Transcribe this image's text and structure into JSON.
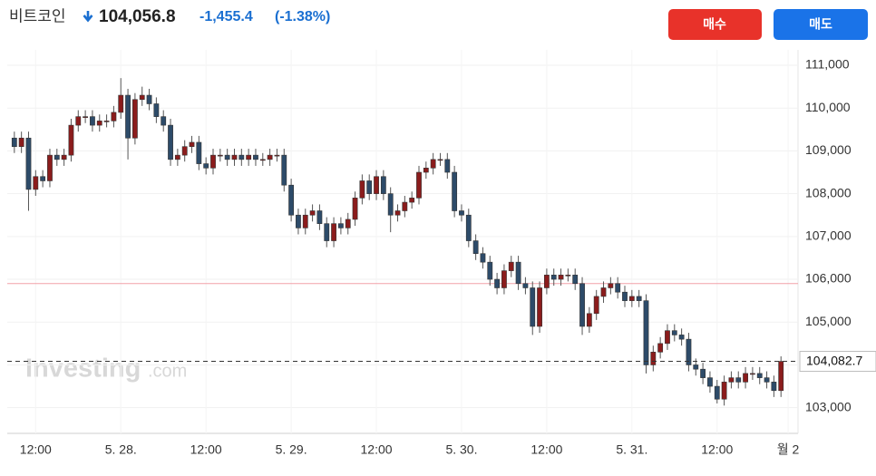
{
  "header": {
    "name": "비트코인",
    "price": "104,056.8",
    "change": "-1,455.4",
    "change_pct": "(-1.38%)"
  },
  "buttons": {
    "buy": "매수",
    "sell": "매도"
  },
  "watermark": {
    "brand": "Investing",
    "suffix": ".com"
  },
  "chart_data": {
    "type": "candlestick",
    "up_color": "#8b1c1c",
    "down_color": "#2d4b69",
    "grid": true,
    "xlim": [
      -16,
      95.4
    ],
    "ylim": [
      102400,
      111360
    ],
    "xticks": [
      {
        "value": -12,
        "label": "12:00"
      },
      {
        "value": 0,
        "label": "5. 28."
      },
      {
        "value": 12,
        "label": "12:00"
      },
      {
        "value": 24,
        "label": "5. 29."
      },
      {
        "value": 36,
        "label": "12:00"
      },
      {
        "value": 48,
        "label": "5. 30."
      },
      {
        "value": 60,
        "label": "12:00"
      },
      {
        "value": 72,
        "label": "5. 31."
      },
      {
        "value": 84,
        "label": "12:00"
      },
      {
        "value": 94,
        "label": "월 2"
      }
    ],
    "yticks": [
      {
        "value": 103000,
        "label": "103,000"
      },
      {
        "value": 104000,
        "label": "104,000"
      },
      {
        "value": 105000,
        "label": "105,000"
      },
      {
        "value": 106000,
        "label": "106,000"
      },
      {
        "value": 107000,
        "label": "107,000"
      },
      {
        "value": 108000,
        "label": "108,000"
      },
      {
        "value": 109000,
        "label": "109,000"
      },
      {
        "value": 110000,
        "label": "110,000"
      },
      {
        "value": 111000,
        "label": "111,000"
      }
    ],
    "ref_line": {
      "value": 105900,
      "color": "#f2a0a8"
    },
    "last_price": {
      "value": 104082.7,
      "label": "104,082.7"
    },
    "x": [
      -15,
      -14,
      -13,
      -12,
      -11,
      -10,
      -9,
      -8,
      -7,
      -6,
      -5,
      -4,
      -3,
      -2,
      -1,
      0,
      1,
      2,
      3,
      4,
      5,
      6,
      7,
      8,
      9,
      10,
      11,
      12,
      13,
      14,
      15,
      16,
      17,
      18,
      19,
      20,
      21,
      22,
      23,
      24,
      25,
      26,
      27,
      28,
      29,
      30,
      31,
      32,
      33,
      34,
      35,
      36,
      37,
      38,
      39,
      40,
      41,
      42,
      43,
      44,
      45,
      46,
      47,
      48,
      49,
      50,
      51,
      52,
      53,
      54,
      55,
      56,
      57,
      58,
      59,
      60,
      61,
      62,
      63,
      64,
      65,
      66,
      67,
      68,
      69,
      70,
      71,
      72,
      73,
      74,
      75,
      76,
      77,
      78,
      79,
      80,
      81,
      82,
      83,
      84,
      85,
      86,
      87,
      88,
      89,
      90,
      91,
      92,
      93
    ],
    "open": [
      109300,
      109100,
      109300,
      108100,
      108400,
      108300,
      108900,
      108800,
      108900,
      109600,
      109800,
      109800,
      109600,
      109700,
      109700,
      109900,
      110300,
      109300,
      110200,
      110300,
      110100,
      109800,
      109600,
      108800,
      108900,
      109100,
      109200,
      108700,
      108600,
      108900,
      108900,
      108800,
      108900,
      108800,
      108900,
      108800,
      108800,
      108900,
      108900,
      108200,
      107500,
      107200,
      107500,
      107600,
      107300,
      106900,
      107300,
      107200,
      107400,
      107900,
      108300,
      108000,
      108400,
      108000,
      107500,
      107600,
      107800,
      107900,
      108500,
      108600,
      108800,
      108800,
      108500,
      107600,
      107500,
      106900,
      106600,
      106400,
      106000,
      105800,
      106200,
      106400,
      105900,
      105800,
      104900,
      105800,
      106100,
      106000,
      106100,
      106100,
      105900,
      104900,
      105200,
      105600,
      105800,
      105900,
      105700,
      105500,
      105600,
      105500,
      104000,
      104300,
      104500,
      104800,
      104700,
      104600,
      104000,
      103900,
      103700,
      103500,
      103200,
      103600,
      103700,
      103600,
      103800,
      103800,
      103700,
      103600,
      103400
    ],
    "high": [
      109450,
      109450,
      109450,
      108550,
      108550,
      109050,
      109050,
      109050,
      109750,
      109950,
      109950,
      109950,
      109850,
      109850,
      110050,
      110700,
      110450,
      110350,
      110500,
      110450,
      110250,
      109950,
      109750,
      109050,
      109250,
      109350,
      109350,
      108850,
      109050,
      109050,
      109050,
      109050,
      109050,
      109050,
      109050,
      108950,
      109050,
      109050,
      109050,
      108350,
      107650,
      107650,
      107750,
      107750,
      107450,
      107450,
      107450,
      107550,
      108050,
      108450,
      108450,
      108550,
      108550,
      108150,
      107750,
      107950,
      108050,
      108650,
      108750,
      108950,
      108950,
      108950,
      108650,
      107750,
      107650,
      107050,
      106750,
      106550,
      106150,
      106350,
      106550,
      106550,
      106050,
      105950,
      105950,
      106250,
      106250,
      106250,
      106250,
      106250,
      106050,
      105350,
      105750,
      105950,
      106050,
      106050,
      105850,
      105750,
      105750,
      105650,
      104450,
      104650,
      104950,
      104950,
      104850,
      104750,
      104150,
      104050,
      103850,
      103650,
      103750,
      103850,
      103850,
      103950,
      103950,
      103950,
      103850,
      103750,
      104200
    ],
    "low": [
      108950,
      108950,
      107600,
      107950,
      108150,
      108150,
      108650,
      108650,
      108750,
      109450,
      109650,
      109450,
      109450,
      109550,
      109550,
      109750,
      108800,
      109150,
      110050,
      109950,
      109650,
      109450,
      108650,
      108650,
      108750,
      108950,
      108550,
      108450,
      108450,
      108750,
      108650,
      108650,
      108650,
      108650,
      108650,
      108650,
      108650,
      108750,
      108050,
      107350,
      107050,
      107050,
      107350,
      107150,
      106750,
      106750,
      107050,
      107050,
      107250,
      107750,
      107850,
      107850,
      107850,
      107100,
      107350,
      107450,
      107650,
      107750,
      108350,
      108450,
      108650,
      108350,
      107450,
      107350,
      106750,
      106450,
      106250,
      105850,
      105650,
      105650,
      106050,
      105750,
      105650,
      104700,
      104750,
      105650,
      105850,
      105850,
      105950,
      105750,
      104700,
      104750,
      105050,
      105450,
      105650,
      105550,
      105350,
      105350,
      105350,
      103800,
      103850,
      104150,
      104350,
      104550,
      104450,
      103850,
      103750,
      103550,
      103350,
      103100,
      103050,
      103450,
      103450,
      103450,
      103650,
      103550,
      103450,
      103250,
      103250
    ],
    "close": [
      109100,
      109300,
      108100,
      108400,
      108300,
      108900,
      108800,
      108900,
      109600,
      109800,
      109800,
      109600,
      109700,
      109700,
      109900,
      110300,
      109300,
      110200,
      110300,
      110100,
      109800,
      109600,
      108800,
      108900,
      109100,
      109200,
      108700,
      108600,
      108900,
      108900,
      108800,
      108900,
      108800,
      108900,
      108800,
      108800,
      108900,
      108900,
      108200,
      107500,
      107200,
      107500,
      107600,
      107300,
      106900,
      107300,
      107200,
      107400,
      107900,
      108300,
      108000,
      108400,
      108000,
      107500,
      107600,
      107800,
      107900,
      108500,
      108600,
      108800,
      108800,
      108500,
      107600,
      107500,
      106900,
      106600,
      106400,
      106000,
      105800,
      106200,
      106400,
      105900,
      105800,
      104900,
      105800,
      106100,
      106000,
      106100,
      106100,
      105900,
      104900,
      105200,
      105600,
      105800,
      105900,
      105700,
      105500,
      105600,
      105500,
      104000,
      104300,
      104500,
      104800,
      104700,
      104600,
      104000,
      103900,
      103700,
      103500,
      103200,
      103600,
      103700,
      103600,
      103800,
      103800,
      103700,
      103600,
      103400,
      104082.7
    ]
  }
}
